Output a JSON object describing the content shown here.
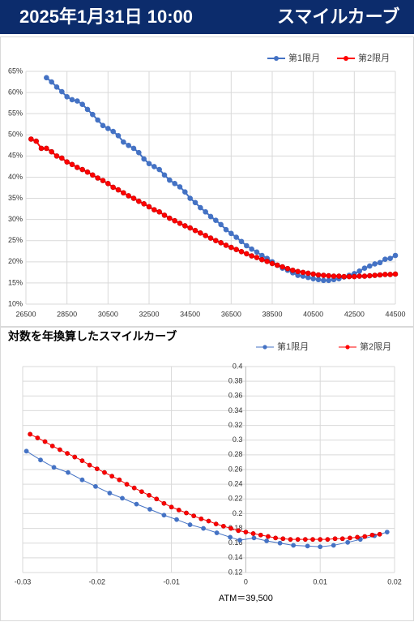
{
  "header": {
    "datetime": "2025年1月31日 10:00",
    "title": "スマイルカーブ"
  },
  "chart_data": [
    {
      "type": "line",
      "grid": true,
      "legend": "top-right",
      "xlim": [
        26500,
        44500
      ],
      "xticks": [
        26500,
        28500,
        30500,
        32500,
        34500,
        36500,
        38500,
        40500,
        42500,
        44500
      ],
      "ylim": [
        10,
        65
      ],
      "yticks": [
        {
          "value": 10,
          "label": "10%"
        },
        {
          "value": 15,
          "label": "15%"
        },
        {
          "value": 20,
          "label": "20%"
        },
        {
          "value": 25,
          "label": "25%"
        },
        {
          "value": 30,
          "label": "30%"
        },
        {
          "value": 35,
          "label": "35%"
        },
        {
          "value": 40,
          "label": "40%"
        },
        {
          "value": 45,
          "label": "45%"
        },
        {
          "value": 50,
          "label": "50%"
        },
        {
          "value": 55,
          "label": "55%"
        },
        {
          "value": 60,
          "label": "60%"
        },
        {
          "value": 65,
          "label": "65%"
        }
      ],
      "series": [
        {
          "name": "第1限月",
          "color": "#4472c4",
          "x": [
            27500,
            27750,
            28000,
            28250,
            28500,
            28750,
            29000,
            29250,
            29500,
            29750,
            30000,
            30250,
            30500,
            30750,
            31000,
            31250,
            31500,
            31750,
            32000,
            32250,
            32500,
            32750,
            33000,
            33250,
            33500,
            33750,
            34000,
            34250,
            34500,
            34750,
            35000,
            35250,
            35500,
            35750,
            36000,
            36250,
            36500,
            36750,
            37000,
            37250,
            37500,
            37750,
            38000,
            38250,
            38500,
            38750,
            39000,
            39250,
            39500,
            39750,
            40000,
            40250,
            40500,
            40750,
            41000,
            41250,
            41500,
            41750,
            42000,
            42250,
            42500,
            42750,
            43000,
            43250,
            43500,
            43750,
            44000,
            44250,
            44500
          ],
          "values": [
            63.5,
            62.5,
            61.3,
            60.2,
            59,
            58.3,
            58,
            57.2,
            56,
            54.8,
            53.5,
            52.2,
            51.5,
            50.8,
            49.8,
            48.3,
            47.5,
            46.8,
            45.8,
            44.3,
            43.2,
            42.5,
            41.8,
            40.5,
            39.3,
            38.5,
            37.7,
            36.5,
            35,
            34,
            32.8,
            31.8,
            30.7,
            29.8,
            28.8,
            27.6,
            26.7,
            25.8,
            24.8,
            23.8,
            23,
            22.3,
            21.5,
            20.8,
            20,
            19.2,
            18.5,
            18,
            17.4,
            16.8,
            16.6,
            16.3,
            16,
            15.8,
            15.6,
            15.6,
            15.8,
            16,
            16.4,
            16.8,
            17.2,
            17.8,
            18.5,
            19,
            19.5,
            19.8,
            20.6,
            20.8,
            21.5
          ]
        },
        {
          "name": "第2限月",
          "color": "#ff0000",
          "x": [
            26750,
            27000,
            27250,
            27500,
            27750,
            28000,
            28250,
            28500,
            28750,
            29000,
            29250,
            29500,
            29750,
            30000,
            30250,
            30500,
            30750,
            31000,
            31250,
            31500,
            31750,
            32000,
            32250,
            32500,
            32750,
            33000,
            33250,
            33500,
            33750,
            34000,
            34250,
            34500,
            34750,
            35000,
            35250,
            35500,
            35750,
            36000,
            36250,
            36500,
            36750,
            37000,
            37250,
            37500,
            37750,
            38000,
            38250,
            38500,
            38750,
            39000,
            39250,
            39500,
            39750,
            40000,
            40250,
            40500,
            40750,
            41000,
            41250,
            41500,
            41750,
            42000,
            42250,
            42500,
            42750,
            43000,
            43250,
            43500,
            43750,
            44000,
            44250,
            44500
          ],
          "values": [
            49,
            48.5,
            46.8,
            46.8,
            46,
            45,
            44.5,
            43.6,
            43,
            42.3,
            41.8,
            41.2,
            40.5,
            39.8,
            39.2,
            38.5,
            37.6,
            37,
            36.3,
            35.6,
            35,
            34.3,
            33.7,
            33,
            32.3,
            31.8,
            31,
            30.3,
            29.7,
            29.1,
            28.5,
            28,
            27.4,
            26.8,
            26.2,
            25.6,
            25,
            24.5,
            23.9,
            23.4,
            22.9,
            22.4,
            21.9,
            21.4,
            21,
            20.5,
            20.1,
            19.6,
            19.2,
            18.8,
            18.4,
            18,
            17.7,
            17.5,
            17.3,
            17.1,
            16.9,
            16.8,
            16.7,
            16.6,
            16.6,
            16.5,
            16.5,
            16.5,
            16.6,
            16.6,
            16.7,
            16.8,
            16.9,
            17,
            17,
            17.1
          ]
        }
      ]
    },
    {
      "type": "line",
      "grid": true,
      "legend": "top-right",
      "title": "対数を年換算したスマイルカーブ",
      "x_label": "ATM＝39,500",
      "xlim": [
        -0.03,
        0.02
      ],
      "xticks": [
        -0.03,
        -0.02,
        -0.01,
        0,
        0.01,
        0.02
      ],
      "ylim": [
        0.12,
        0.4
      ],
      "yticks": [
        0.12,
        0.14,
        0.16,
        0.18,
        0.2,
        0.22,
        0.24,
        0.26,
        0.28,
        0.3,
        0.32,
        0.34,
        0.36,
        0.38,
        0.4
      ],
      "series": [
        {
          "name": "第1限月",
          "color": "#4472c4",
          "x": [
            -0.0295,
            -0.0276,
            -0.0258,
            -0.0239,
            -0.022,
            -0.0202,
            -0.0183,
            -0.0166,
            -0.0147,
            -0.0129,
            -0.011,
            -0.0093,
            -0.0075,
            -0.0057,
            -0.0039,
            -0.0021,
            -0.0008,
            0.0011,
            0.0028,
            0.0046,
            0.0064,
            0.0083,
            0.01,
            0.0118,
            0.0137,
            0.0154,
            0.0173,
            0.019
          ],
          "values": [
            0.285,
            0.273,
            0.263,
            0.256,
            0.246,
            0.237,
            0.228,
            0.221,
            0.213,
            0.206,
            0.198,
            0.192,
            0.185,
            0.18,
            0.174,
            0.168,
            0.164,
            0.167,
            0.163,
            0.16,
            0.157,
            0.156,
            0.155,
            0.157,
            0.161,
            0.165,
            0.17,
            0.175
          ]
        },
        {
          "name": "第2限月",
          "color": "#ff0000",
          "x": [
            -0.029,
            -0.028,
            -0.027,
            -0.026,
            -0.025,
            -0.024,
            -0.023,
            -0.022,
            -0.021,
            -0.02,
            -0.019,
            -0.018,
            -0.017,
            -0.016,
            -0.015,
            -0.014,
            -0.013,
            -0.012,
            -0.011,
            -0.01,
            -0.009,
            -0.008,
            -0.007,
            -0.006,
            -0.005,
            -0.004,
            -0.003,
            -0.002,
            -0.001,
            0,
            0.001,
            0.002,
            0.003,
            0.004,
            0.005,
            0.006,
            0.007,
            0.008,
            0.009,
            0.01,
            0.011,
            0.012,
            0.013,
            0.014,
            0.015,
            0.016,
            0.017,
            0.018
          ],
          "values": [
            0.308,
            0.303,
            0.298,
            0.292,
            0.287,
            0.282,
            0.277,
            0.272,
            0.266,
            0.261,
            0.256,
            0.251,
            0.246,
            0.24,
            0.235,
            0.23,
            0.225,
            0.22,
            0.214,
            0.209,
            0.205,
            0.201,
            0.197,
            0.193,
            0.19,
            0.186,
            0.183,
            0.18,
            0.177,
            0.175,
            0.173,
            0.171,
            0.169,
            0.167,
            0.166,
            0.165,
            0.165,
            0.165,
            0.165,
            0.165,
            0.165,
            0.166,
            0.166,
            0.167,
            0.168,
            0.169,
            0.171,
            0.172
          ]
        }
      ]
    }
  ]
}
